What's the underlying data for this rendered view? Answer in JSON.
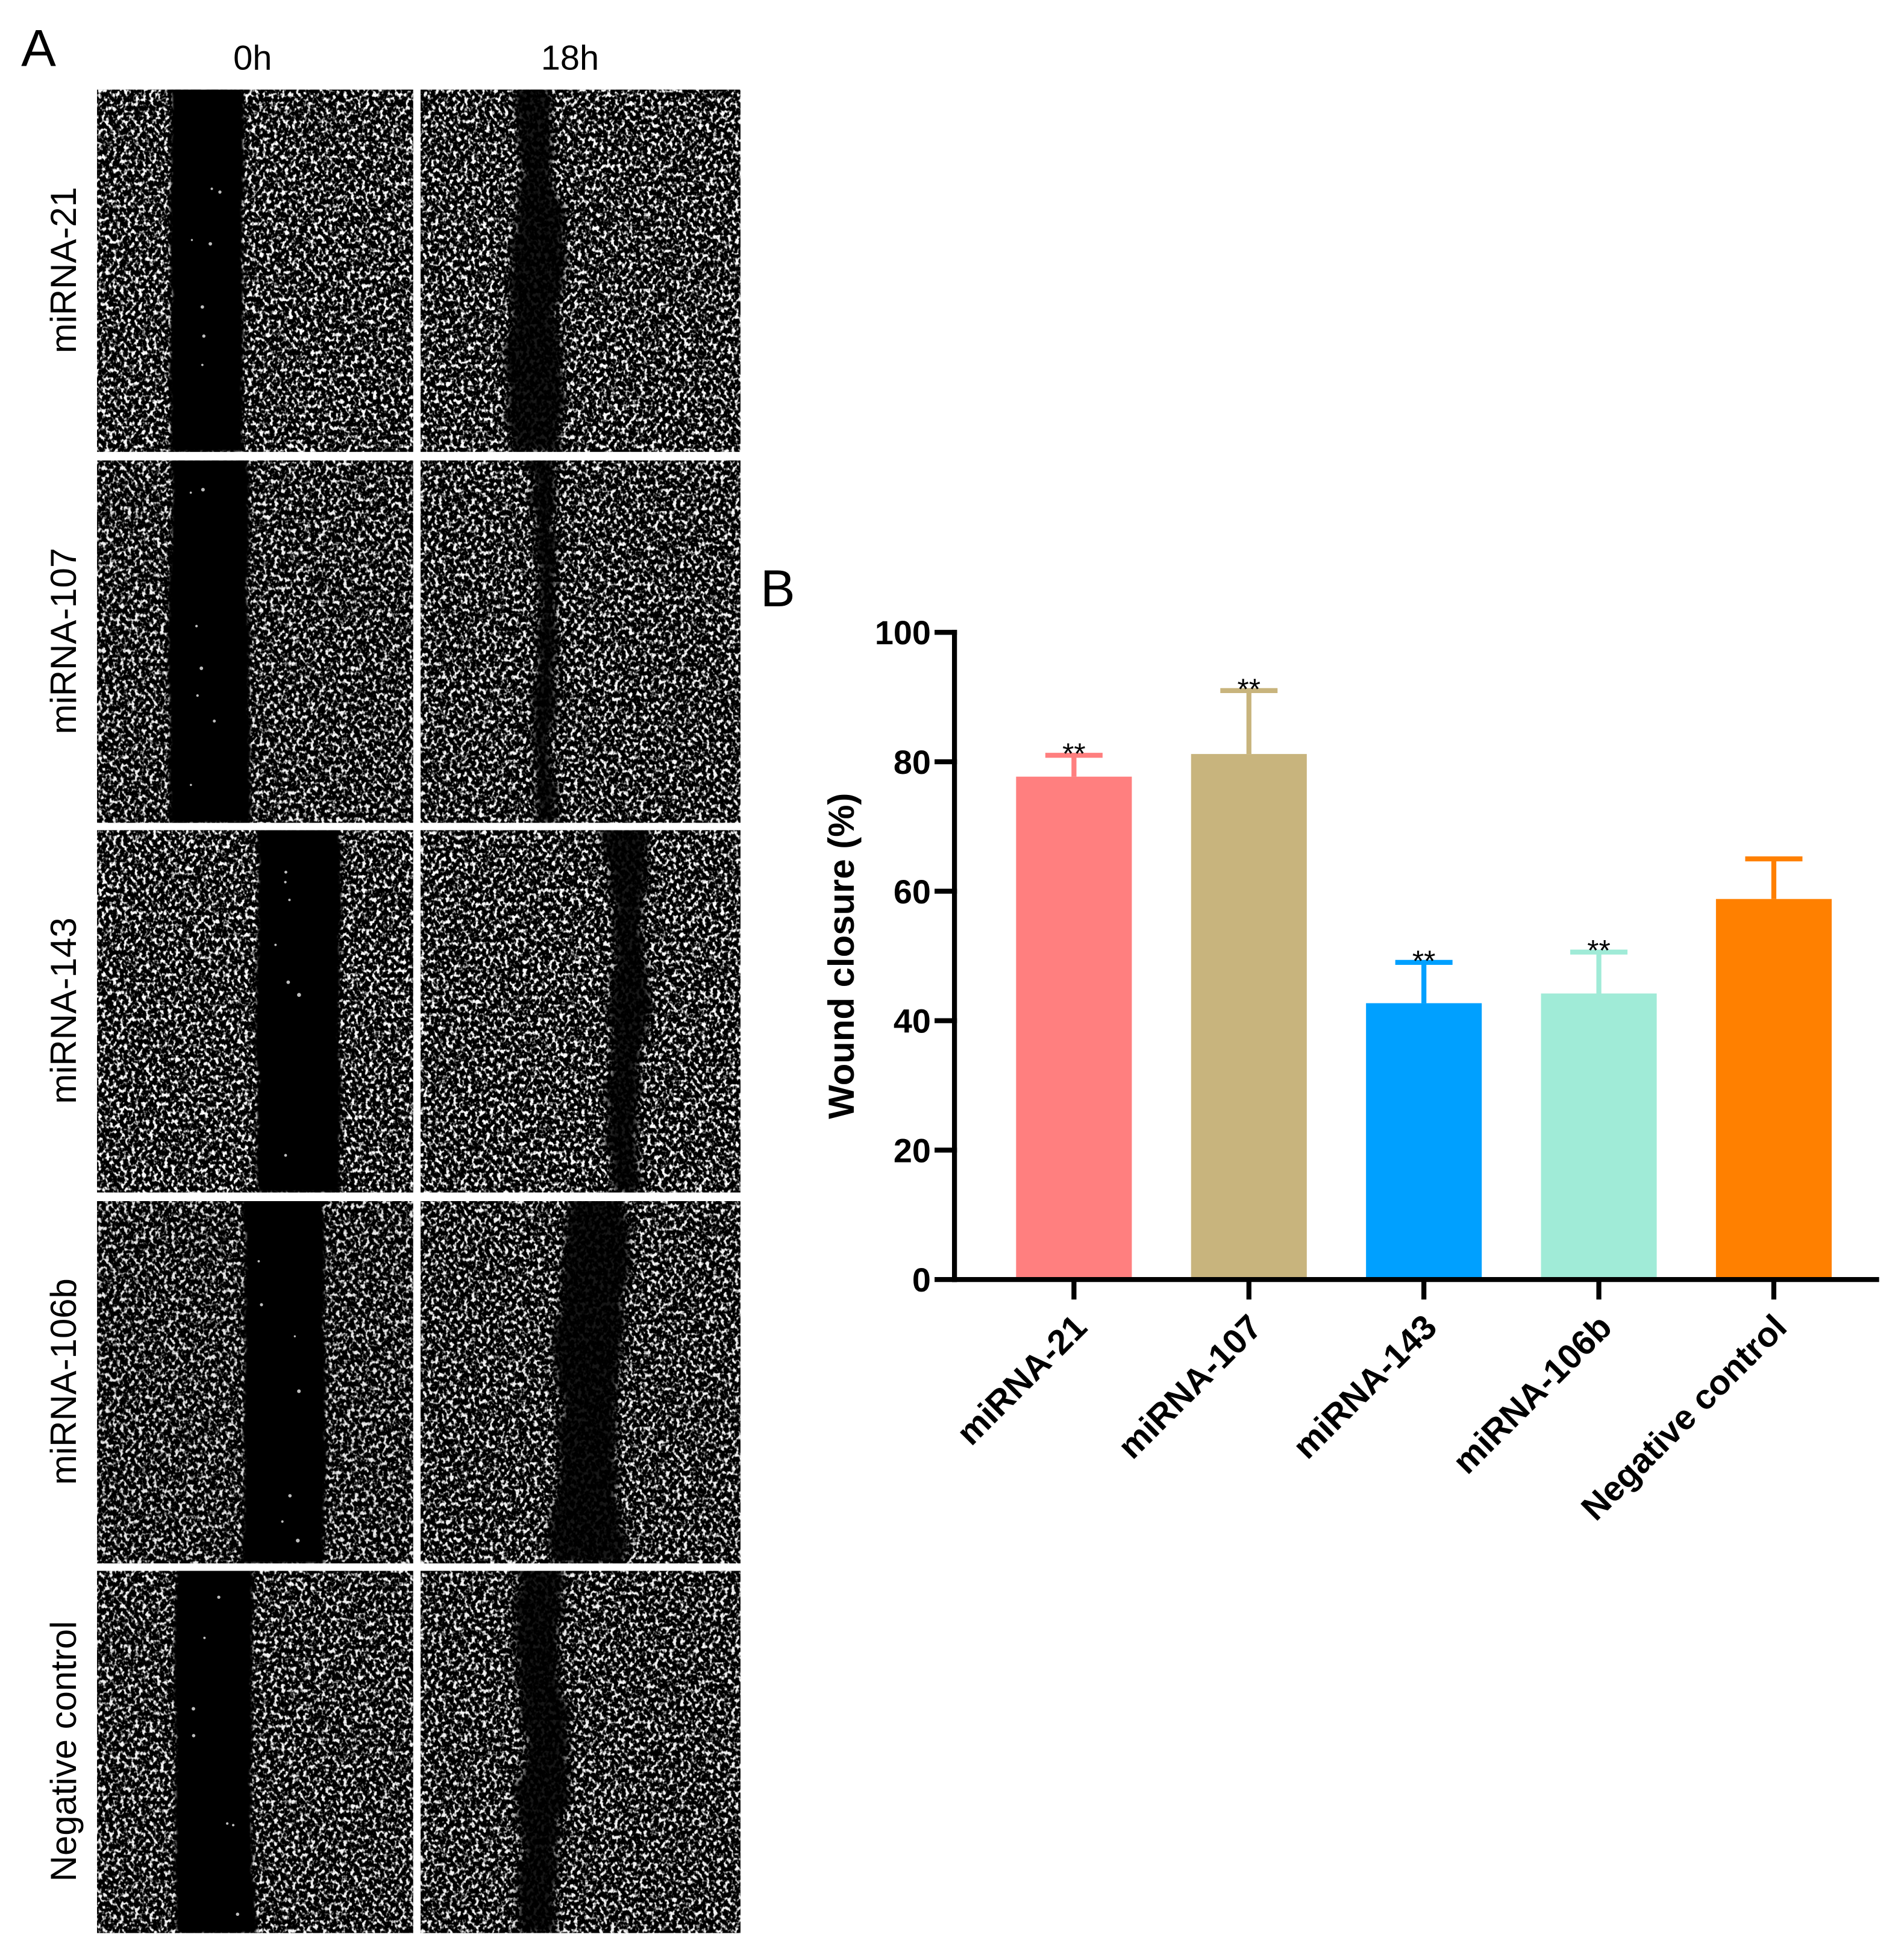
{
  "panel_a": {
    "label": "A",
    "columns": [
      "0h",
      "18h"
    ],
    "rows": [
      "miRNA-21",
      "miRNA-107",
      "miRNA-143",
      "miRNA-106b",
      "Negative control"
    ]
  },
  "panel_b": {
    "label": "B"
  },
  "chart_data": {
    "type": "bar",
    "categories": [
      "miRNA-21",
      "miRNA-107",
      "miRNA-143",
      "miRNA-106b",
      "Negative control"
    ],
    "values": [
      77.7,
      81.2,
      42.7,
      44.2,
      58.8
    ],
    "errors": [
      3.3,
      9.8,
      6.3,
      6.4,
      6.2
    ],
    "significance": [
      "**",
      "**",
      "**",
      "**",
      ""
    ],
    "colors": [
      "#FF7F7F",
      "#C8B47D",
      "#00A0FF",
      "#A0EBD7",
      "#FF8000"
    ],
    "ylabel": "Wound closure (%)",
    "ylim": [
      0,
      100
    ],
    "yticks": [
      0,
      20,
      40,
      60,
      80,
      100
    ]
  }
}
